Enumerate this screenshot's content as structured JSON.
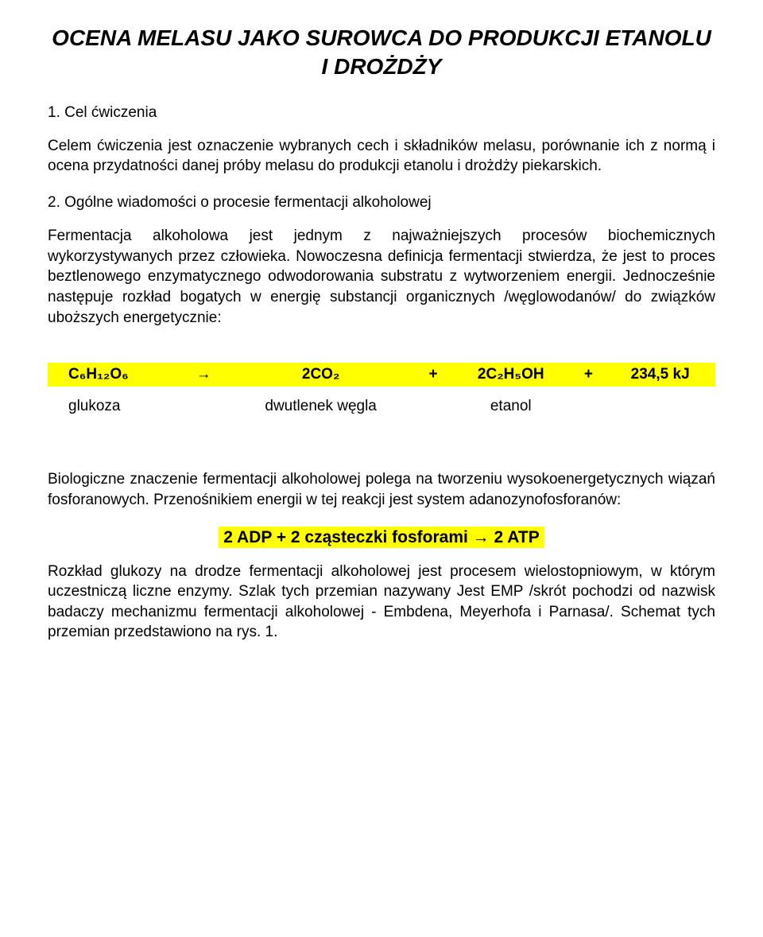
{
  "title": "OCENA MELASU JAKO SUROWCA DO PRODUKCJI ETANOLU I DROŻDŻY",
  "section1_heading": "1. Cel ćwiczenia",
  "section1_body": "Celem ćwiczenia jest oznaczenie wybranych cech i składników melasu, porównanie ich z normą i ocena przydatności danej próby melasu do produkcji etanolu i drożdży piekarskich.",
  "section2_heading": "2. Ogólne wiadomości o procesie fermentacji alkoholowej",
  "section2_body": "Fermentacja alkoholowa jest jednym z najważniejszych procesów biochemicznych wykorzystywanych przez człowieka. Nowoczesna definicja fermentacji stwierdza, że jest to proces beztlenowego enzymatycznego odwodorowania substratu z wytworzeniem energii. Jednocześnie następuje rozkład bogatych w energię substancji organicznych /węglowodanów/ do związków uboższych energetycznie:",
  "equation": {
    "cells_row1": [
      "C₆H₁₂O₆",
      "→",
      "2CO₂",
      "+",
      "2C₂H₅OH",
      "+",
      "234,5 kJ"
    ],
    "cells_row2": [
      "glukoza",
      "",
      "dwutlenek węgla",
      "",
      "etanol",
      "",
      ""
    ]
  },
  "section3_body": "Biologiczne znaczenie fermentacji alkoholowej polega na tworzeniu wysokoenergetycznych wiązań fosforanowych. Przenośnikiem energii w tej reakcji jest system adanozynofosforanów:",
  "equation2": "2 ADP + 2 cząsteczki fosforami → 2 ATP",
  "section4_body": "Rozkład glukozy na drodze fermentacji alkoholowej jest procesem wielostopniowym, w którym uczestniczą liczne enzymy. Szlak tych przemian nazywany Jest EMP /skrót pochodzi od nazwisk badaczy mechanizmu fermentacji alkoholowej - Embdena, Meyerhofa i Parnasa/. Schemat tych przemian przedstawiono na rys. 1.",
  "colors": {
    "highlight": "#ffff00",
    "text": "#000000",
    "background": "#ffffff"
  },
  "fonts": {
    "title_size": 28,
    "body_size": 19,
    "equation2_size": 21
  }
}
